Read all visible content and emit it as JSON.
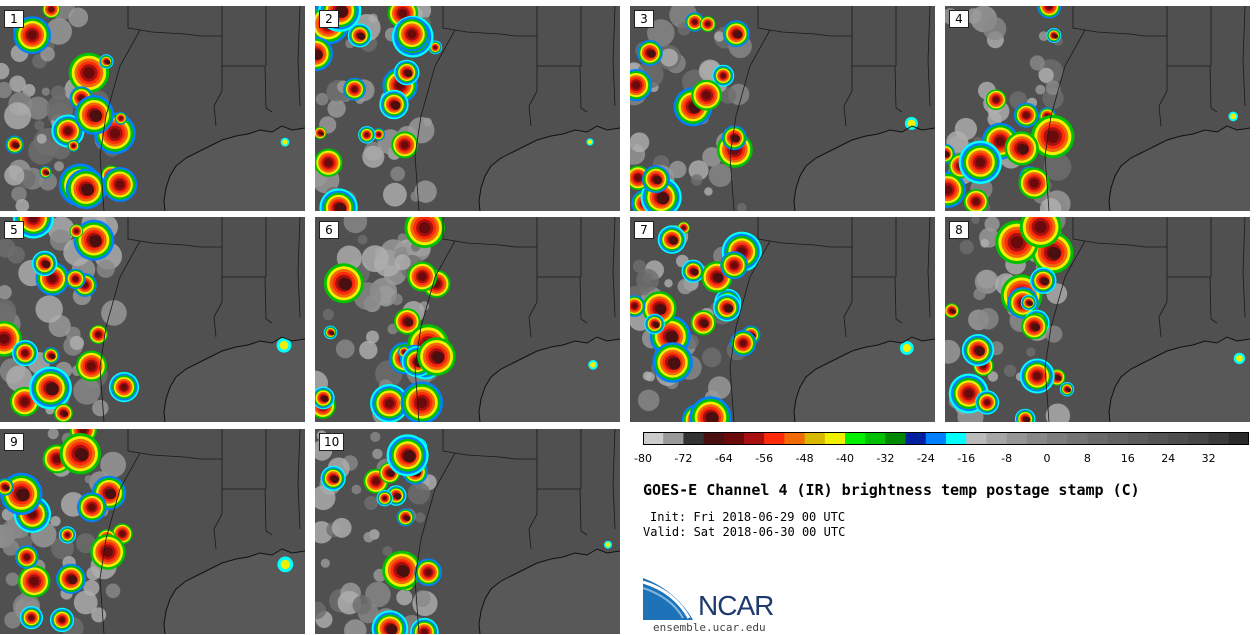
{
  "panels": [
    {
      "label": "1"
    },
    {
      "label": "2"
    },
    {
      "label": "3"
    },
    {
      "label": "4"
    },
    {
      "label": "5"
    },
    {
      "label": "6"
    },
    {
      "label": "7"
    },
    {
      "label": "8"
    },
    {
      "label": "9"
    },
    {
      "label": "10"
    }
  ],
  "colorbar": {
    "ticks": [
      "-80",
      "-72",
      "-64",
      "-56",
      "-48",
      "-40",
      "-32",
      "-24",
      "-16",
      "-8",
      "0",
      "8",
      "16",
      "24",
      "32"
    ],
    "range": [
      -80,
      40
    ],
    "step": 4,
    "colors": [
      "#cccccc",
      "#999999",
      "#333333",
      "#4a1010",
      "#6b0a0a",
      "#aa1010",
      "#ff2a0a",
      "#f06a08",
      "#d8b800",
      "#f0f000",
      "#00f000",
      "#00c000",
      "#008800",
      "#0020a0",
      "#0080ff",
      "#00ffff",
      "#bbbbbb",
      "#a6a6a6",
      "#959595",
      "#888888",
      "#7d7d7d",
      "#737373",
      "#6a6a6a",
      "#626262",
      "#5b5b5b",
      "#545454",
      "#4d4d4d",
      "#464646",
      "#3a3a3a",
      "#2a2a2a"
    ]
  },
  "title": "GOES-E Channel 4 (IR) brightness temp postage stamp (C)",
  "init": "Init: Fri 2018-06-29 00 UTC",
  "valid": "Valid: Sat 2018-06-30 00 UTC",
  "logo_text": "NCAR",
  "url": "ensemble.ucar.edu"
}
